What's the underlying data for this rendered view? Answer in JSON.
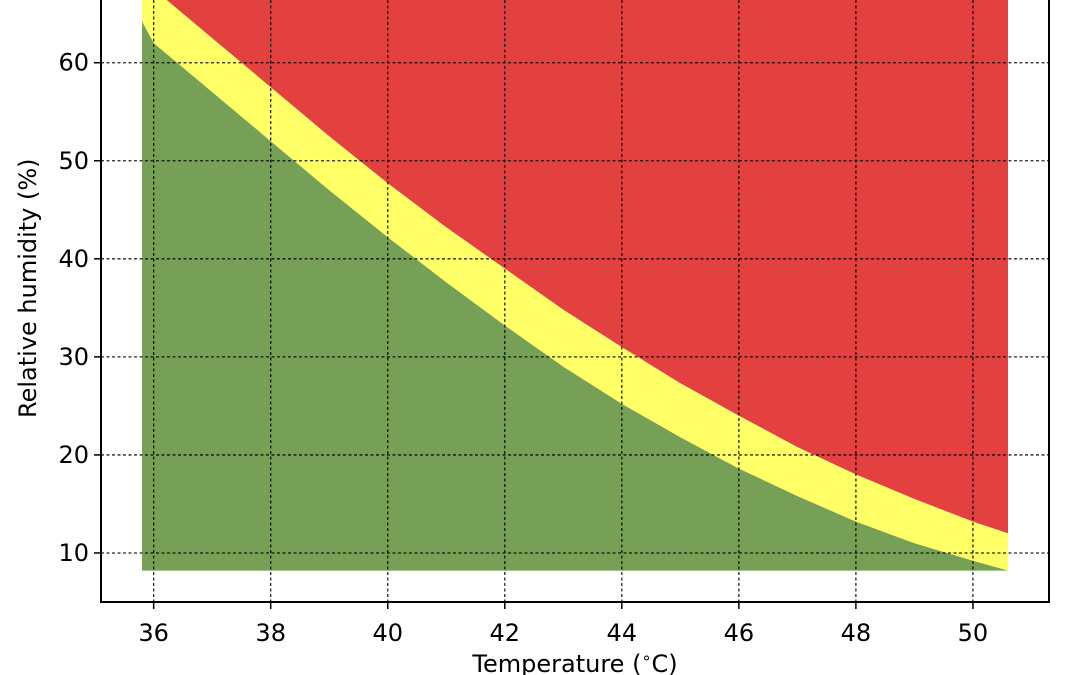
{
  "chart_data": {
    "type": "area",
    "title": "",
    "xlabel": "Temperature ($^\\circ$C)",
    "ylabel": "Relative humidity (%)",
    "xlim": [
      35.1,
      51.3
    ],
    "ylim": [
      5.0,
      66.6
    ],
    "xticks": [
      36,
      38,
      40,
      42,
      44,
      46,
      48,
      50
    ],
    "yticks": [
      10,
      20,
      30,
      40,
      50,
      60
    ],
    "grid": true,
    "colors": {
      "safe": "#76a055",
      "caution": "#ffff66",
      "danger": "#e34040"
    },
    "x": [
      35.8,
      36,
      37,
      38,
      39,
      40,
      41,
      42,
      43,
      44,
      45,
      46,
      47,
      48,
      49,
      50,
      50.6
    ],
    "series": [
      {
        "values": [
          8.2,
          8.2,
          8.2,
          8.2,
          8.2,
          8.2,
          8.2,
          8.2,
          8.2,
          8.2,
          8.2,
          8.2,
          8.2,
          8.2,
          8.2,
          8.2,
          8.2
        ]
      },
      {
        "values": [
          64.2,
          62.0,
          57.0,
          52.0,
          47.0,
          42.2,
          37.6,
          33.2,
          29.0,
          25.2,
          21.8,
          18.6,
          15.8,
          13.2,
          11.0,
          9.2,
          8.2
        ]
      },
      {
        "values": [
          70.0,
          67.5,
          62.5,
          57.5,
          52.5,
          47.7,
          43.2,
          39.0,
          34.8,
          31.0,
          27.3,
          24.0,
          20.8,
          18.0,
          15.5,
          13.2,
          12.0
        ]
      }
    ]
  }
}
